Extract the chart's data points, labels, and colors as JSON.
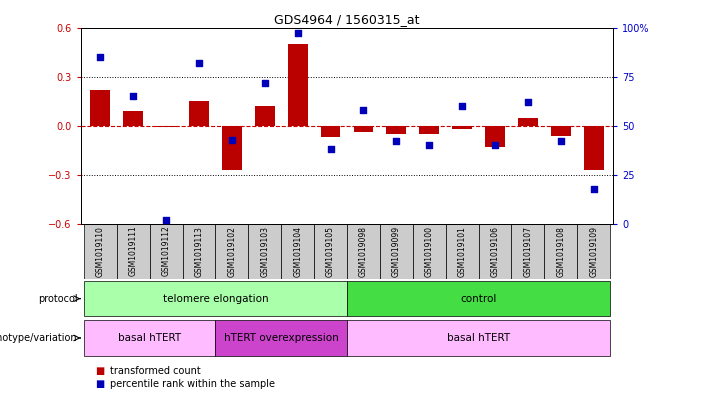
{
  "title": "GDS4964 / 1560315_at",
  "samples": [
    "GSM1019110",
    "GSM1019111",
    "GSM1019112",
    "GSM1019113",
    "GSM1019102",
    "GSM1019103",
    "GSM1019104",
    "GSM1019105",
    "GSM1019098",
    "GSM1019099",
    "GSM1019100",
    "GSM1019101",
    "GSM1019106",
    "GSM1019107",
    "GSM1019108",
    "GSM1019109"
  ],
  "transformed_count": [
    0.22,
    0.09,
    -0.01,
    0.15,
    -0.27,
    0.12,
    0.5,
    -0.07,
    -0.04,
    -0.05,
    -0.05,
    -0.02,
    -0.13,
    0.05,
    -0.06,
    -0.27
  ],
  "percentile_rank": [
    85,
    65,
    2,
    82,
    43,
    72,
    97,
    38,
    58,
    42,
    40,
    60,
    40,
    62,
    42,
    18
  ],
  "ylim_left": [
    -0.6,
    0.6
  ],
  "ylim_right": [
    0,
    100
  ],
  "yticks_left": [
    -0.6,
    -0.3,
    0.0,
    0.3,
    0.6
  ],
  "yticks_right": [
    0,
    25,
    50,
    75,
    100
  ],
  "bar_color": "#bb0000",
  "dot_color": "#0000bb",
  "zero_line_color": "#cc0000",
  "protocol_groups": [
    {
      "label": "telomere elongation",
      "start": 0,
      "end": 7,
      "color": "#aaffaa"
    },
    {
      "label": "control",
      "start": 8,
      "end": 15,
      "color": "#44dd44"
    }
  ],
  "genotype_groups": [
    {
      "label": "basal hTERT",
      "start": 0,
      "end": 3,
      "color": "#ffbbff"
    },
    {
      "label": "hTERT overexpression",
      "start": 4,
      "end": 7,
      "color": "#cc44cc"
    },
    {
      "label": "basal hTERT",
      "start": 8,
      "end": 15,
      "color": "#ffbbff"
    }
  ],
  "legend_items": [
    {
      "label": "transformed count",
      "color": "#bb0000"
    },
    {
      "label": "percentile rank within the sample",
      "color": "#0000bb"
    }
  ],
  "protocol_label": "protocol",
  "genotype_label": "genotype/variation",
  "left_tick_color": "#cc0000",
  "right_tick_color": "#0000cc",
  "bg_color": "#ffffff",
  "label_bg_color": "#cccccc"
}
